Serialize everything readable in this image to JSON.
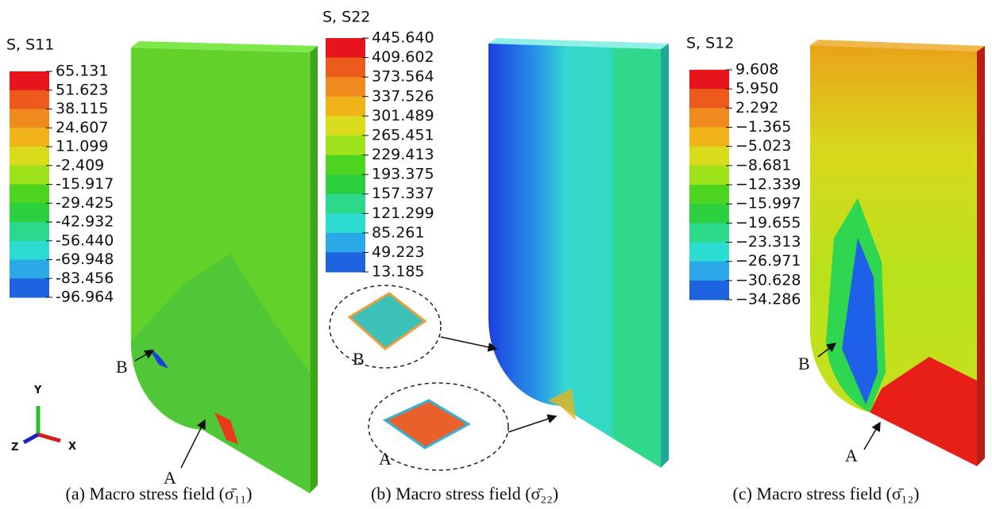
{
  "panels": [
    {
      "legend": {
        "title": "S, S11",
        "labels": [
          "65.131",
          "51.623",
          "38.115",
          "24.607",
          "11.099",
          "-2.409",
          "-15.917",
          "-29.425",
          "-42.932",
          "-56.440",
          "-69.948",
          "-83.456",
          "-96.964"
        ]
      },
      "points": [
        "B",
        "A"
      ],
      "caption": "(a) Macro stress field (σ̄₁₁)"
    },
    {
      "legend": {
        "title": "S, S22",
        "labels": [
          "445.640",
          "409.602",
          "373.564",
          "337.526",
          "301.489",
          "265.451",
          "229.413",
          "193.375",
          "157.337",
          "121.299",
          "85.261",
          "49.223",
          "13.185"
        ]
      },
      "insets": [
        "B",
        "A"
      ],
      "caption": "(b) Macro stress field (σ̄₂₂)"
    },
    {
      "legend": {
        "title": "S, S12",
        "labels": [
          "9.608",
          "5.950",
          "2.292",
          "−1.365",
          "−5.023",
          "−8.681",
          "−12.339",
          "−15.997",
          "−19.655",
          "−23.313",
          "−26.971",
          "−30.628",
          "−34.286"
        ]
      },
      "points": [
        "B",
        "A"
      ],
      "caption": "(c) Macro stress field (σ̄₁₂)"
    }
  ],
  "axes": [
    "Y",
    "Z",
    "X"
  ]
}
